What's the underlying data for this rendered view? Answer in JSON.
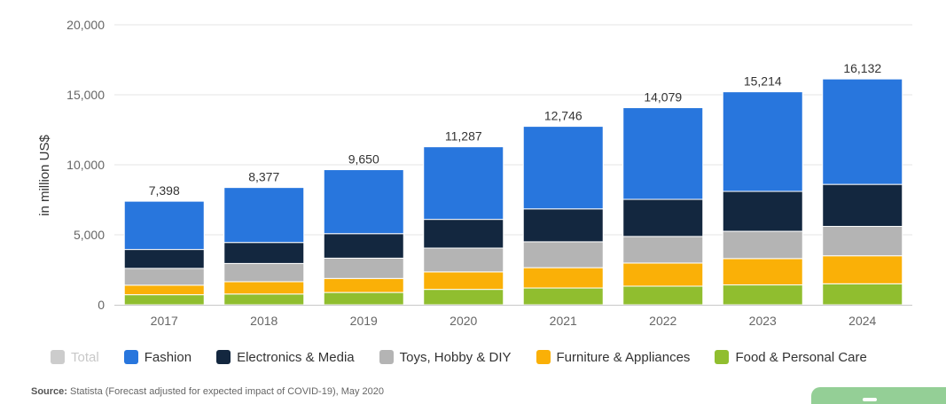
{
  "chart_data": {
    "type": "bar",
    "stacked": true,
    "categories": [
      "2017",
      "2018",
      "2019",
      "2020",
      "2021",
      "2022",
      "2023",
      "2024"
    ],
    "totals": [
      "7,398",
      "8,377",
      "9,650",
      "11,287",
      "12,746",
      "14,079",
      "15,214",
      "16,132"
    ],
    "total_values": [
      7398,
      8377,
      9650,
      11287,
      12746,
      14079,
      15214,
      16132
    ],
    "series": [
      {
        "name": "Food & Personal Care",
        "color": "#90be2f",
        "values": [
          720,
          770,
          880,
          1100,
          1200,
          1330,
          1420,
          1500
        ]
      },
      {
        "name": "Furniture & Appliances",
        "color": "#fab007",
        "values": [
          680,
          880,
          1000,
          1250,
          1450,
          1650,
          1880,
          2000
        ]
      },
      {
        "name": "Toys, Hobby & DIY",
        "color": "#b4b4b4",
        "values": [
          1200,
          1300,
          1450,
          1700,
          1850,
          1900,
          1950,
          2100
        ]
      },
      {
        "name": "Electronics & Media",
        "color": "#13273f",
        "values": [
          1350,
          1500,
          1750,
          2050,
          2350,
          2650,
          2850,
          3000
        ]
      },
      {
        "name": "Fashion",
        "color": "#2876dd",
        "values": [
          3448,
          3927,
          4570,
          5187,
          5896,
          6549,
          7114,
          7532
        ]
      }
    ],
    "ylabel": "in million US$",
    "yticks": [
      "0",
      "5,000",
      "10,000",
      "15,000",
      "20,000"
    ],
    "ytick_values": [
      0,
      5000,
      10000,
      15000,
      20000
    ],
    "ylim": [
      0,
      20000
    ],
    "grid": true
  },
  "legend": [
    {
      "label": "Total",
      "color": "#cccccc",
      "disabled": true
    },
    {
      "label": "Fashion",
      "color": "#2876dd",
      "disabled": false
    },
    {
      "label": "Electronics & Media",
      "color": "#13273f",
      "disabled": false
    },
    {
      "label": "Toys, Hobby & DIY",
      "color": "#b4b4b4",
      "disabled": false
    },
    {
      "label": "Furniture & Appliances",
      "color": "#fab007",
      "disabled": false
    },
    {
      "label": "Food & Personal Care",
      "color": "#90be2f",
      "disabled": false
    }
  ],
  "source": {
    "label": "Source:",
    "text": "Statista (Forecast adjusted for expected impact of COVID-19), May 2020"
  }
}
